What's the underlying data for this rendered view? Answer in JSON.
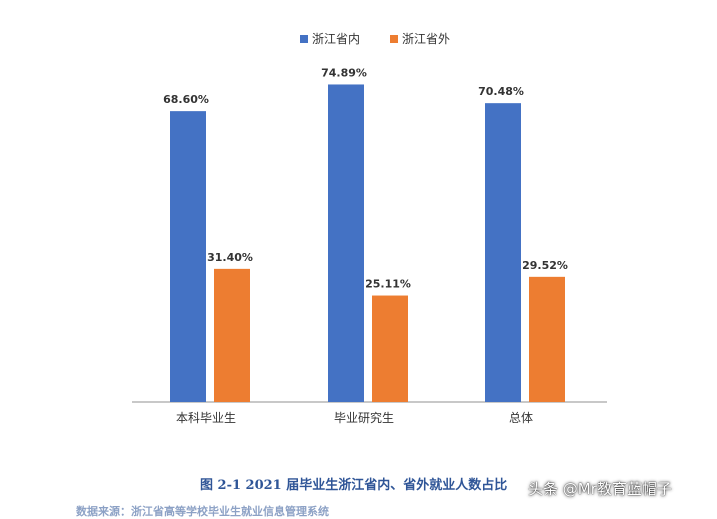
{
  "chart_data": {
    "type": "bar",
    "categories": [
      "本科毕业生",
      "毕业研究生",
      "总体"
    ],
    "series": [
      {
        "name": "浙江省内",
        "values": [
          68.6,
          74.89,
          70.48
        ],
        "labels": [
          "68.60%",
          "74.89%",
          "70.48%"
        ],
        "color": "#4472c4"
      },
      {
        "name": "浙江省外",
        "values": [
          31.4,
          25.11,
          29.52
        ],
        "labels": [
          "31.40%",
          "25.11%",
          "29.52%"
        ],
        "color": "#ed7d31"
      }
    ],
    "ylim": [
      0,
      100
    ],
    "grid": false,
    "legend_position": "top",
    "title": "图 2-1 2021 届毕业生浙江省内、省外就业人数占比"
  },
  "source_text": "数据来源：浙江省高等学校毕业生就业信息管理系统",
  "watermark": "头条 @Mr教育蓝帽子"
}
